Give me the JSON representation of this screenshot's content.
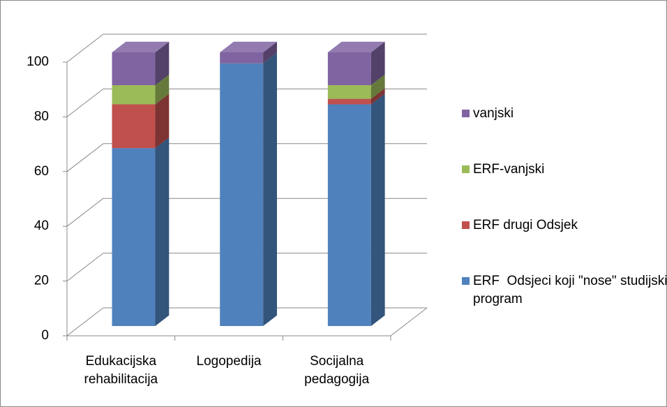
{
  "chart_data": {
    "type": "bar3d_stacked",
    "categories": [
      "Edukacijska rehabilitacija",
      "Logopedija",
      "Socijalna pedagogija"
    ],
    "series": [
      {
        "name": "ERF  Odsjeci koji \"nose\" studijski program",
        "color": "#4f81bd",
        "values": [
          65,
          96,
          81
        ]
      },
      {
        "name": "ERF drugi Odsjek",
        "color": "#c0504d",
        "values": [
          16,
          0,
          2
        ]
      },
      {
        "name": "ERF-vanjski",
        "color": "#9bbb59",
        "values": [
          7,
          0,
          5
        ]
      },
      {
        "name": "vanjski",
        "color": "#8064a2",
        "values": [
          12,
          4,
          12
        ]
      }
    ],
    "ylim": [
      0,
      100
    ],
    "yticks": [
      0,
      20,
      40,
      60,
      80,
      100
    ],
    "grid": true,
    "legend": "right"
  }
}
